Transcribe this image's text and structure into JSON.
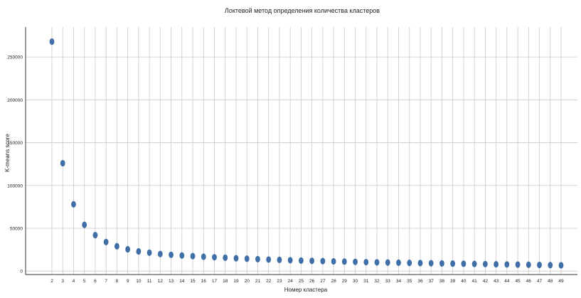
{
  "chart_data": {
    "type": "scatter",
    "title": "Локтевой метод определения количества кластеров",
    "xlabel": "Номер кластера",
    "ylabel": "K-means score",
    "grid": true,
    "ylim": [
      -4000,
      285000
    ],
    "y_ticks": [
      0,
      50000,
      100000,
      150000,
      200000,
      250000
    ],
    "x": [
      2,
      3,
      4,
      5,
      6,
      7,
      8,
      9,
      10,
      11,
      12,
      13,
      14,
      15,
      16,
      17,
      18,
      19,
      20,
      21,
      22,
      23,
      24,
      25,
      26,
      27,
      28,
      29,
      30,
      31,
      32,
      33,
      34,
      35,
      36,
      37,
      38,
      39,
      40,
      41,
      42,
      43,
      44,
      45,
      46,
      47,
      48,
      49
    ],
    "values": [
      268000,
      126000,
      78000,
      54000,
      42000,
      34000,
      29000,
      25500,
      23000,
      21500,
      20000,
      19000,
      18200,
      17500,
      16800,
      16200,
      15600,
      15000,
      14500,
      14000,
      13500,
      13100,
      12700,
      12300,
      12000,
      11700,
      11400,
      11100,
      10800,
      10500,
      10200,
      10000,
      9800,
      9600,
      9400,
      9200,
      9000,
      8800,
      8600,
      8400,
      8200,
      8000,
      7800,
      7600,
      7400,
      7200,
      7000,
      6800
    ],
    "color": "#3f6fa6",
    "grid_color": "#c9c9c9"
  }
}
